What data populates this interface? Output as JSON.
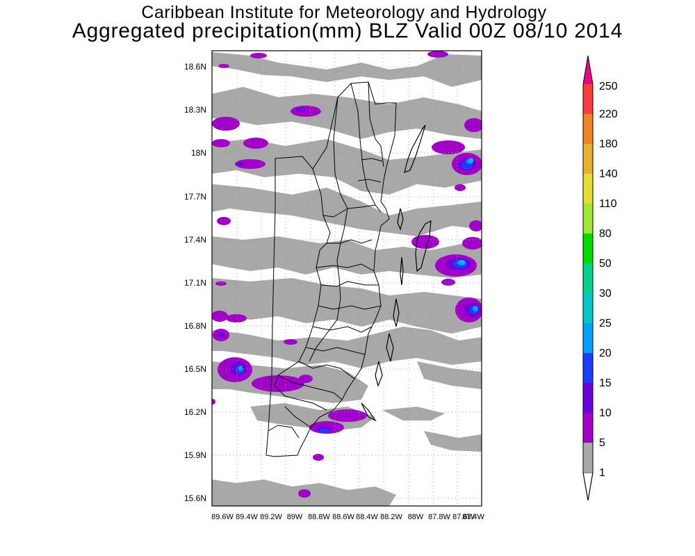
{
  "header": {
    "line1": "Caribbean Institute for Meteorology and Hydrology",
    "line2": "Aggregated precipitation(mm) BLZ Valid 00Z 08/10 2014"
  },
  "map": {
    "lat_labels": [
      "18.6N",
      "18.3N",
      "18N",
      "17.7N",
      "17.4N",
      "17.1N",
      "16.8N",
      "16.5N",
      "16.2N",
      "15.9N",
      "15.6N"
    ],
    "lon_labels": [
      "89.6W",
      "89.4W",
      "89.2W",
      "89W",
      "88.8W",
      "88.6W",
      "88.4W",
      "88.2W",
      "88W",
      "87.8W",
      "87.6W",
      "87.4W"
    ]
  },
  "colorbar": {
    "levels": [
      "1",
      "5",
      "10",
      "15",
      "20",
      "25",
      "30",
      "50",
      "80",
      "110",
      "140",
      "180",
      "220",
      "250"
    ],
    "colors": [
      "#a8a8a8",
      "#a000c8",
      "#6e00dc",
      "#1e3cff",
      "#00a0ff",
      "#00c8c8",
      "#00d28c",
      "#00dc00",
      "#a0e632",
      "#e6dc32",
      "#e6af2d",
      "#f08228",
      "#fa3c3c",
      "#f00082"
    ],
    "below_color": "#ffffff"
  }
}
